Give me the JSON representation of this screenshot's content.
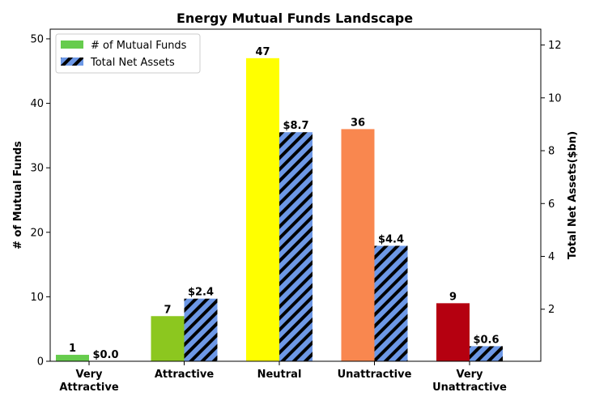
{
  "chart_data": {
    "type": "bar",
    "title": "Energy Mutual Funds Landscape",
    "categories": [
      [
        "Very",
        "Attractive"
      ],
      [
        "Attractive"
      ],
      [
        "Neutral"
      ],
      [
        "Unattractive"
      ],
      [
        "Very",
        "Unattractive"
      ]
    ],
    "series": [
      {
        "name": "# of Mutual Funds",
        "axis": "left",
        "values": [
          1,
          7,
          47,
          36,
          9
        ],
        "labels": [
          "1",
          "7",
          "47",
          "36",
          "9"
        ],
        "colors": [
          "#66cc4d",
          "#8cc71f",
          "#ffff00",
          "#f9874f",
          "#b50010"
        ]
      },
      {
        "name": "Total Net Assets",
        "axis": "right",
        "values": [
          0.0,
          2.4,
          8.7,
          4.4,
          0.6
        ],
        "labels": [
          "$0.0",
          "$2.4",
          "$8.7",
          "$4.4",
          "$0.6"
        ],
        "color": "#6d98e6",
        "hatch": "#000000"
      }
    ],
    "ylabel_left": "# of Mutual Funds",
    "ylabel_right": "Total Net Assets($bn)",
    "ylim_left": [
      0,
      51.5
    ],
    "ylim_right": [
      0.03,
      12.6
    ],
    "yticks_left": [
      0,
      10,
      20,
      30,
      40,
      50
    ],
    "yticks_right": [
      2,
      4,
      6,
      8,
      10,
      12
    ],
    "legend_position": "top-left",
    "grid": false
  }
}
